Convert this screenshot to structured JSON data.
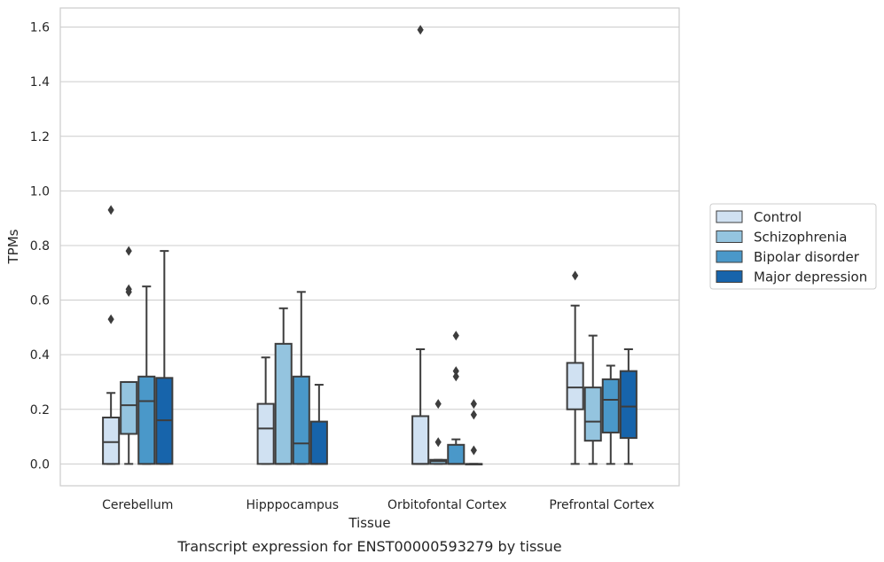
{
  "chart_data": {
    "type": "box",
    "caption": "Transcript expression for ENST00000593279 by tissue",
    "xlabel": "Tissue",
    "ylabel": "TPMs",
    "ylim": [
      -0.08,
      1.67
    ],
    "yticks": [
      "0.0",
      "0.2",
      "0.4",
      "0.6",
      "0.8",
      "1.0",
      "1.2",
      "1.4",
      "1.6"
    ],
    "grid": "horizontal",
    "legend_position": "right",
    "categories": [
      "Cerebellum",
      "Hipppocampus",
      "Orbitofontal Cortex",
      "Prefrontal Cortex"
    ],
    "series": [
      {
        "name": "Control",
        "color": "#d0e1f2",
        "boxes": [
          {
            "min": 0.0,
            "q1": 0.0,
            "median": 0.08,
            "q3": 0.17,
            "max": 0.26,
            "outliers": [
              0.53,
              0.93
            ]
          },
          {
            "min": 0.0,
            "q1": 0.0,
            "median": 0.13,
            "q3": 0.22,
            "max": 0.39,
            "outliers": []
          },
          {
            "min": 0.0,
            "q1": 0.0,
            "median": 0.0,
            "q3": 0.175,
            "max": 0.42,
            "outliers": [
              1.59
            ]
          },
          {
            "min": 0.0,
            "q1": 0.2,
            "median": 0.28,
            "q3": 0.37,
            "max": 0.58,
            "outliers": [
              0.69
            ]
          }
        ]
      },
      {
        "name": "Schizophrenia",
        "color": "#94c4df",
        "boxes": [
          {
            "min": 0.0,
            "q1": 0.11,
            "median": 0.215,
            "q3": 0.3,
            "max": 0.3,
            "outliers": [
              0.63,
              0.64,
              0.78
            ]
          },
          {
            "min": 0.0,
            "q1": 0.0,
            "median": 0.0,
            "q3": 0.44,
            "max": 0.57,
            "outliers": []
          },
          {
            "min": 0.0,
            "q1": 0.0,
            "median": 0.01,
            "q3": 0.015,
            "max": 0.015,
            "outliers": [
              0.08,
              0.22
            ]
          },
          {
            "min": 0.0,
            "q1": 0.085,
            "median": 0.155,
            "q3": 0.28,
            "max": 0.47,
            "outliers": []
          }
        ]
      },
      {
        "name": "Bipolar disorder",
        "color": "#4a98c9",
        "boxes": [
          {
            "min": 0.0,
            "q1": 0.0,
            "median": 0.23,
            "q3": 0.32,
            "max": 0.65,
            "outliers": []
          },
          {
            "min": 0.0,
            "q1": 0.0,
            "median": 0.075,
            "q3": 0.32,
            "max": 0.63,
            "outliers": []
          },
          {
            "min": 0.0,
            "q1": 0.0,
            "median": 0.0,
            "q3": 0.07,
            "max": 0.09,
            "outliers": [
              0.32,
              0.34,
              0.47
            ]
          },
          {
            "min": 0.0,
            "q1": 0.115,
            "median": 0.235,
            "q3": 0.31,
            "max": 0.36,
            "outliers": []
          }
        ]
      },
      {
        "name": "Major depression",
        "color": "#1764ab",
        "boxes": [
          {
            "min": 0.0,
            "q1": 0.0,
            "median": 0.16,
            "q3": 0.315,
            "max": 0.78,
            "outliers": []
          },
          {
            "min": 0.0,
            "q1": 0.0,
            "median": 0.0,
            "q3": 0.155,
            "max": 0.29,
            "outliers": []
          },
          {
            "min": 0.0,
            "q1": 0.0,
            "median": 0.0,
            "q3": 0.0,
            "max": 0.0,
            "outliers": [
              0.05,
              0.18,
              0.22
            ]
          },
          {
            "min": 0.0,
            "q1": 0.095,
            "median": 0.21,
            "q3": 0.34,
            "max": 0.42,
            "outliers": []
          }
        ]
      }
    ]
  }
}
